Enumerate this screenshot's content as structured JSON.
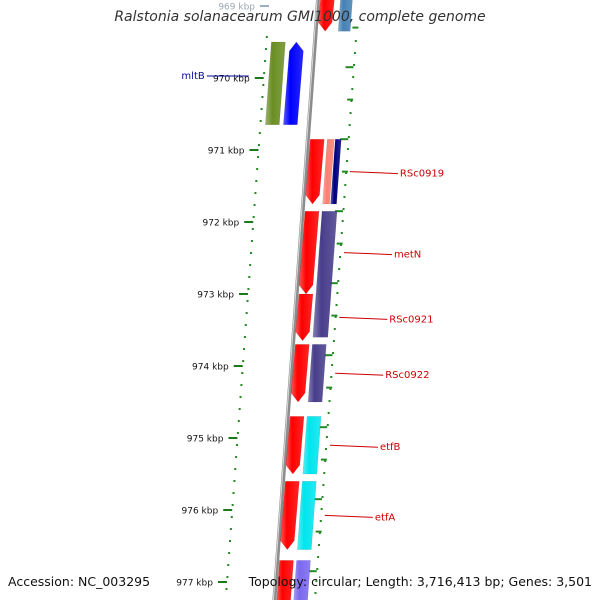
{
  "title": "Ralstonia solanacearum GMI1000, complete genome",
  "footer": {
    "accession": "Accession: NC_003295",
    "topology": "Topology: circular",
    "length": "Length: 3,716,413 bp",
    "genes": "Genes: 3,501"
  },
  "ticks": [
    {
      "label": "969 kbp",
      "kbp": 969
    },
    {
      "label": "970 kbp",
      "kbp": 970
    },
    {
      "label": "971 kbp",
      "kbp": 971
    },
    {
      "label": "972 kbp",
      "kbp": 972
    },
    {
      "label": "973 kbp",
      "kbp": 973
    },
    {
      "label": "974 kbp",
      "kbp": 974
    },
    {
      "label": "975 kbp",
      "kbp": 975
    },
    {
      "label": "976 kbp",
      "kbp": 976
    },
    {
      "label": "977 kbp",
      "kbp": 977
    }
  ],
  "features": [
    {
      "name": "mltB",
      "strand": "forward",
      "start_kbp": 969.95,
      "end_kbp": 970.7,
      "color": "#0a0a99"
    },
    {
      "name": "RSc0919",
      "strand": "reverse",
      "start_kbp": 970.85,
      "end_kbp": 971.75,
      "color": "#cc0000"
    },
    {
      "name": "metN",
      "strand": "reverse",
      "start_kbp": 971.85,
      "end_kbp": 973.0,
      "color": "#cc0000"
    },
    {
      "name": "RSc0921",
      "strand": "reverse",
      "start_kbp": 973.0,
      "end_kbp": 973.65,
      "color": "#cc0000"
    },
    {
      "name": "RSc0922",
      "strand": "reverse",
      "start_kbp": 973.7,
      "end_kbp": 974.5,
      "color": "#cc0000"
    },
    {
      "name": "etfB",
      "strand": "reverse",
      "start_kbp": 974.7,
      "end_kbp": 975.5,
      "color": "#cc0000"
    },
    {
      "name": "etfA",
      "strand": "reverse",
      "start_kbp": 975.6,
      "end_kbp": 976.55,
      "color": "#cc0000"
    }
  ],
  "colors": {
    "backbone": "#8c8c8c",
    "dots": "#228b22",
    "cds": "#ff0000",
    "forward_cds": "#0000ff",
    "gene": "#6b8e23",
    "purple": "#483d8b",
    "cyan": "#00e5ee",
    "salmon": "#fa8072",
    "navy": "#000080",
    "steel": "#4682b4"
  }
}
